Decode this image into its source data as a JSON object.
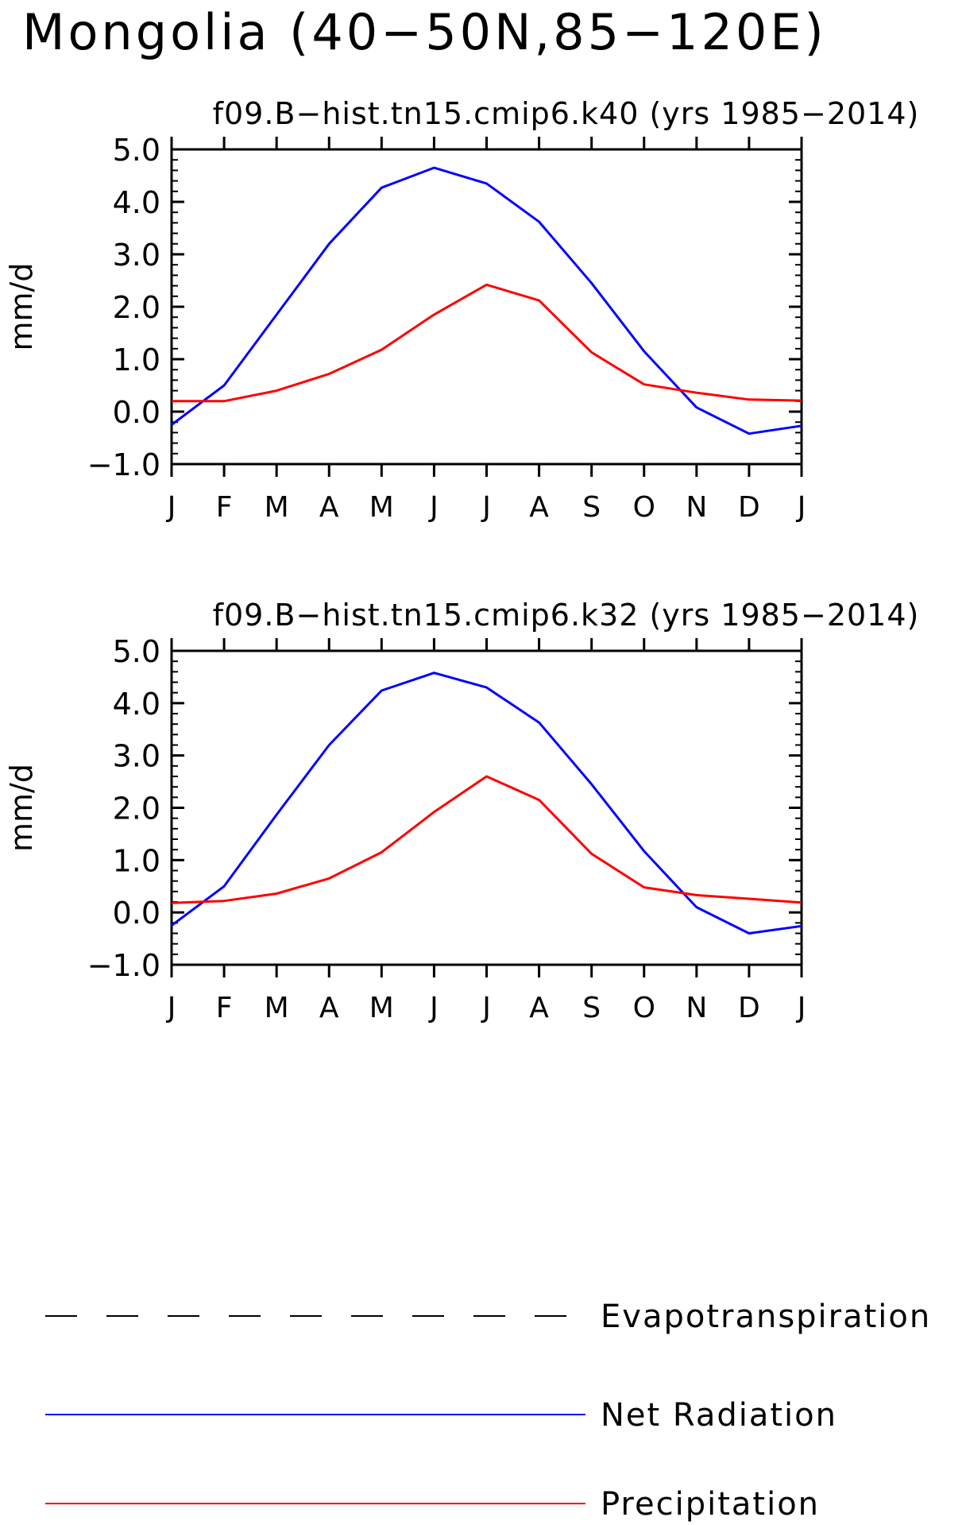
{
  "figure": {
    "title": "Mongolia (40−50N,85−120E)"
  },
  "legend": {
    "placement": "bottom",
    "items": [
      {
        "label": "Evapotranspiration",
        "color": "#000000",
        "style": "dashed"
      },
      {
        "label": "Net Radiation",
        "color": "#0000ff",
        "style": "solid"
      },
      {
        "label": "Precipitation",
        "color": "#ff0000",
        "style": "solid"
      }
    ]
  },
  "chart_data": [
    {
      "type": "line",
      "title": "f09.B−hist.tn15.cmip6.k40 (yrs 1985−2014)",
      "xlabel": "",
      "ylabel": "mm/d",
      "categories": [
        "J",
        "F",
        "M",
        "A",
        "M",
        "J",
        "J",
        "A",
        "S",
        "O",
        "N",
        "D",
        "J"
      ],
      "ylim": [
        -1.0,
        5.0
      ],
      "yticks": [
        "−1.0",
        "0.0",
        "1.0",
        "2.0",
        "3.0",
        "4.0",
        "5.0"
      ],
      "grid": false,
      "series": [
        {
          "name": "Net Radiation",
          "color": "#0000ff",
          "values": [
            -0.25,
            0.5,
            1.85,
            3.2,
            4.27,
            4.65,
            4.35,
            3.62,
            2.45,
            1.15,
            0.08,
            -0.42,
            -0.27
          ]
        },
        {
          "name": "Precipitation",
          "color": "#ff0000",
          "values": [
            0.2,
            0.2,
            0.4,
            0.72,
            1.18,
            1.85,
            2.42,
            2.12,
            1.13,
            0.52,
            0.36,
            0.23,
            0.21
          ]
        }
      ]
    },
    {
      "type": "line",
      "title": "f09.B−hist.tn15.cmip6.k32 (yrs 1985−2014)",
      "xlabel": "",
      "ylabel": "mm/d",
      "categories": [
        "J",
        "F",
        "M",
        "A",
        "M",
        "J",
        "J",
        "A",
        "S",
        "O",
        "N",
        "D",
        "J"
      ],
      "ylim": [
        -1.0,
        5.0
      ],
      "yticks": [
        "−1.0",
        "0.0",
        "1.0",
        "2.0",
        "3.0",
        "4.0",
        "5.0"
      ],
      "grid": false,
      "series": [
        {
          "name": "Net Radiation",
          "color": "#0000ff",
          "values": [
            -0.25,
            0.5,
            1.87,
            3.2,
            4.24,
            4.58,
            4.3,
            3.63,
            2.45,
            1.17,
            0.1,
            -0.4,
            -0.26
          ]
        },
        {
          "name": "Precipitation",
          "color": "#ff0000",
          "values": [
            0.18,
            0.22,
            0.36,
            0.65,
            1.15,
            1.92,
            2.6,
            2.15,
            1.12,
            0.48,
            0.33,
            0.26,
            0.19
          ]
        }
      ]
    }
  ]
}
